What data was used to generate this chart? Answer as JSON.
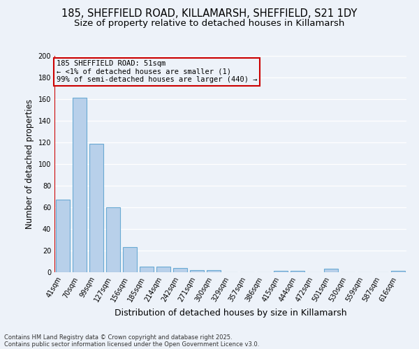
{
  "title1": "185, SHEFFIELD ROAD, KILLAMARSH, SHEFFIELD, S21 1DY",
  "title2": "Size of property relative to detached houses in Killamarsh",
  "xlabel": "Distribution of detached houses by size in Killamarsh",
  "ylabel": "Number of detached properties",
  "categories": [
    "41sqm",
    "70sqm",
    "99sqm",
    "127sqm",
    "156sqm",
    "185sqm",
    "214sqm",
    "242sqm",
    "271sqm",
    "300sqm",
    "329sqm",
    "357sqm",
    "386sqm",
    "415sqm",
    "444sqm",
    "472sqm",
    "501sqm",
    "530sqm",
    "559sqm",
    "587sqm",
    "616sqm"
  ],
  "values": [
    67,
    161,
    119,
    60,
    23,
    5,
    5,
    4,
    2,
    2,
    0,
    0,
    0,
    1,
    1,
    0,
    3,
    0,
    0,
    0,
    1
  ],
  "bar_color": "#b8d0ea",
  "bar_edge_color": "#6aaad4",
  "highlight_color": "#cc0000",
  "annotation_lines": [
    "185 SHEFFIELD ROAD: 51sqm",
    "← <1% of detached houses are smaller (1)",
    "99% of semi-detached houses are larger (440) →"
  ],
  "ylim": [
    0,
    200
  ],
  "yticks": [
    0,
    20,
    40,
    60,
    80,
    100,
    120,
    140,
    160,
    180,
    200
  ],
  "footer1": "Contains HM Land Registry data © Crown copyright and database right 2025.",
  "footer2": "Contains public sector information licensed under the Open Government Licence v3.0.",
  "bg_color": "#edf2f9",
  "grid_color": "#ffffff",
  "title_fontsize": 10.5,
  "subtitle_fontsize": 9.5,
  "tick_fontsize": 7,
  "ylabel_fontsize": 8.5,
  "xlabel_fontsize": 9,
  "footer_fontsize": 6,
  "annot_fontsize": 7.5
}
